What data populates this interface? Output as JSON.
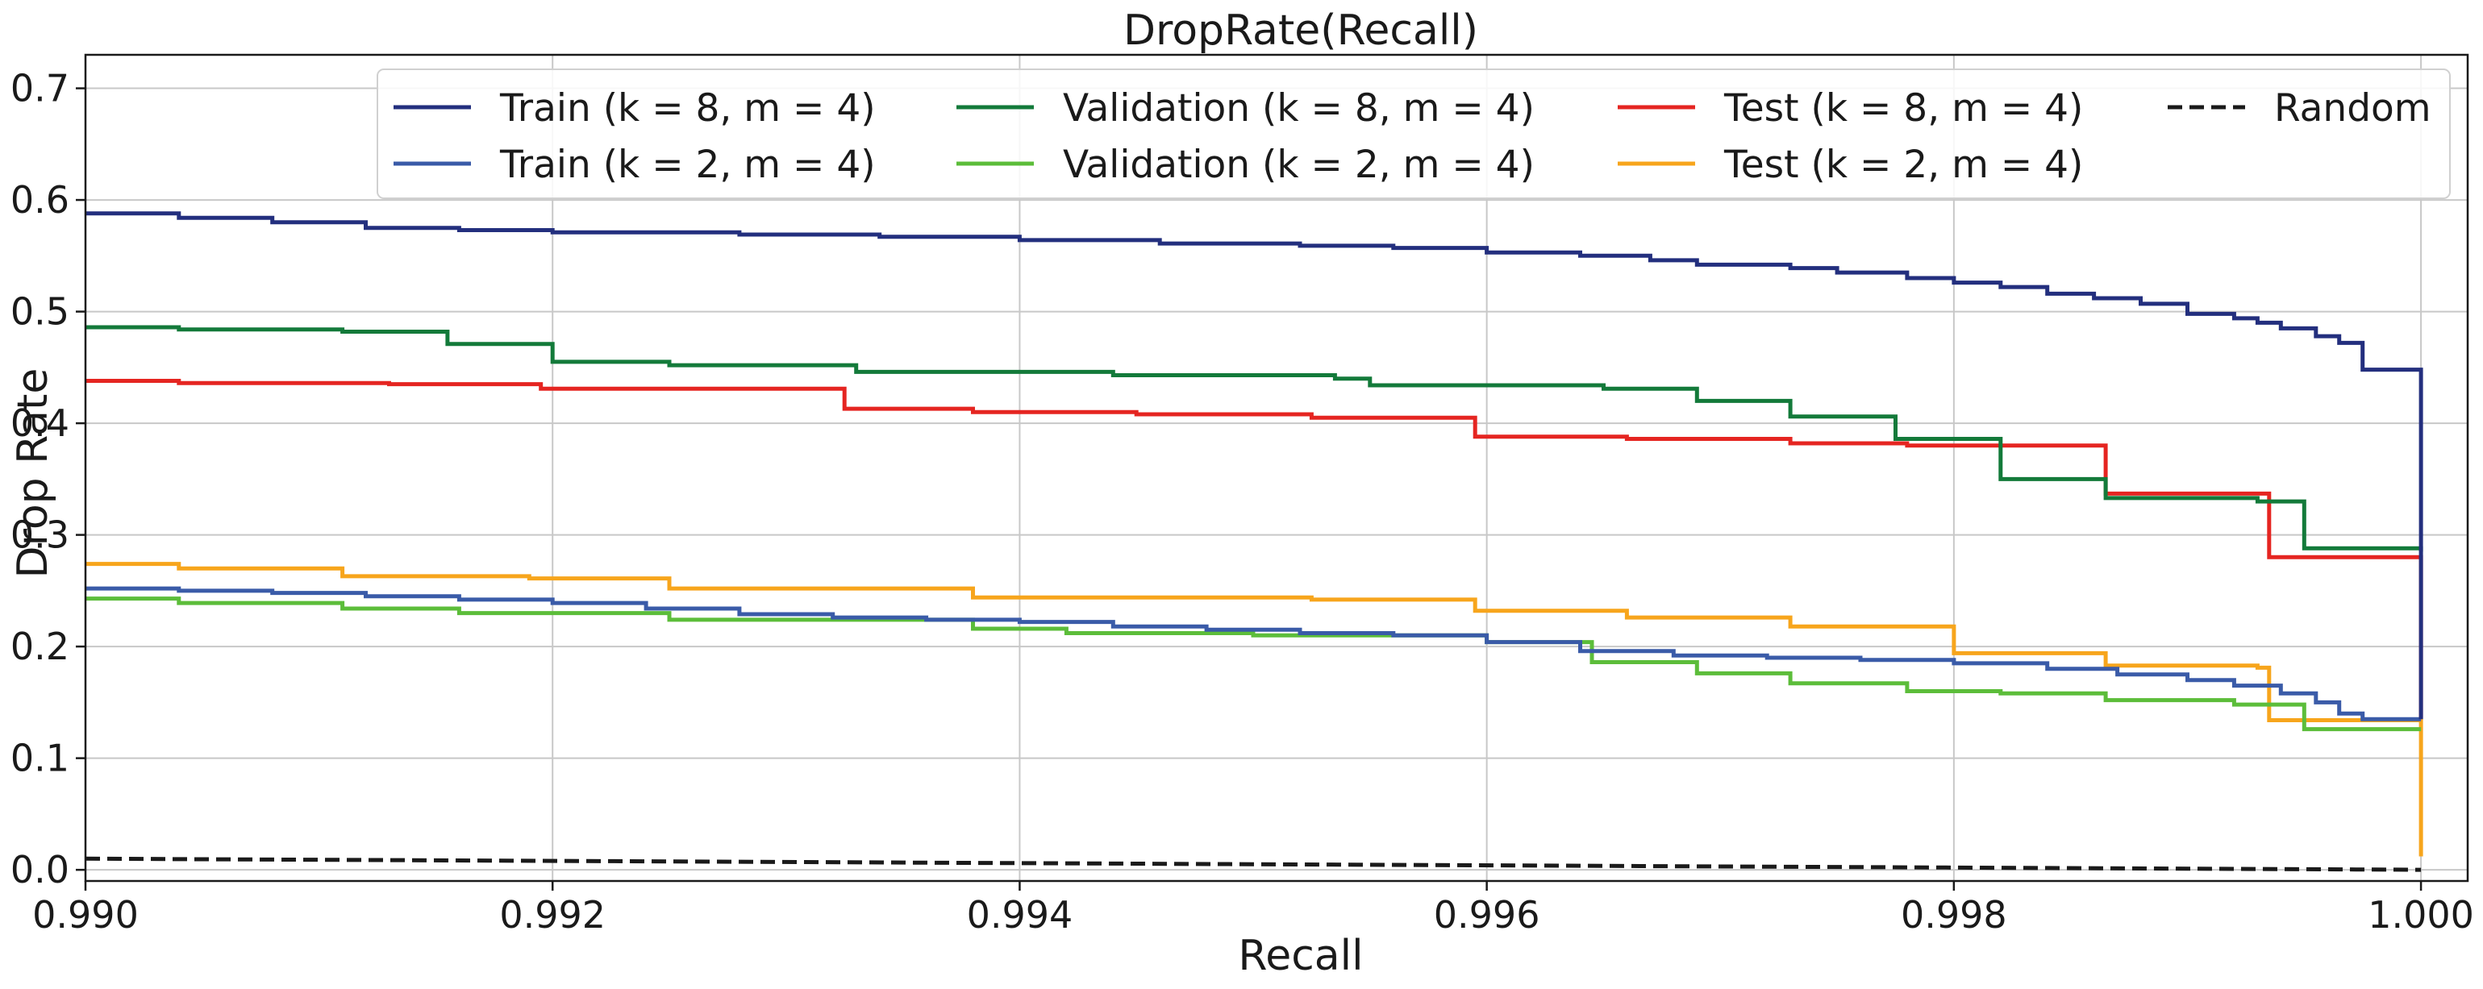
{
  "chart_data": {
    "type": "line",
    "step": true,
    "title": "DropRate(Recall)",
    "xlabel": "Recall",
    "ylabel": "Drop Rate",
    "xlim": [
      0.99,
      1.0002
    ],
    "ylim": [
      -0.01,
      0.73
    ],
    "xticks": [
      0.99,
      0.992,
      0.994,
      0.996,
      0.998,
      1.0
    ],
    "xtick_labels": [
      "0.990",
      "0.992",
      "0.994",
      "0.996",
      "0.998",
      "1.000"
    ],
    "yticks": [
      0.0,
      0.1,
      0.2,
      0.3,
      0.4,
      0.5,
      0.6,
      0.7
    ],
    "ytick_labels": [
      "0.0",
      "0.1",
      "0.2",
      "0.3",
      "0.4",
      "0.5",
      "0.6",
      "0.7"
    ],
    "grid": true,
    "legend_position": "top-right",
    "series": [
      {
        "name": "Train (k = 8, m = 4)",
        "color": "#232f7e",
        "dash": "solid",
        "points": [
          [
            0.99,
            0.588
          ],
          [
            0.9904,
            0.584
          ],
          [
            0.9908,
            0.58
          ],
          [
            0.9912,
            0.575
          ],
          [
            0.9916,
            0.573
          ],
          [
            0.992,
            0.571
          ],
          [
            0.9928,
            0.569
          ],
          [
            0.9934,
            0.567
          ],
          [
            0.994,
            0.564
          ],
          [
            0.9946,
            0.561
          ],
          [
            0.9952,
            0.559
          ],
          [
            0.9956,
            0.557
          ],
          [
            0.996,
            0.553
          ],
          [
            0.9964,
            0.55
          ],
          [
            0.9967,
            0.546
          ],
          [
            0.9969,
            0.542
          ],
          [
            0.9973,
            0.539
          ],
          [
            0.9975,
            0.535
          ],
          [
            0.9978,
            0.53
          ],
          [
            0.998,
            0.526
          ],
          [
            0.9982,
            0.522
          ],
          [
            0.9984,
            0.516
          ],
          [
            0.9986,
            0.512
          ],
          [
            0.9988,
            0.507
          ],
          [
            0.999,
            0.498
          ],
          [
            0.9992,
            0.494
          ],
          [
            0.9993,
            0.49
          ],
          [
            0.9994,
            0.485
          ],
          [
            0.99955,
            0.478
          ],
          [
            0.99965,
            0.472
          ],
          [
            0.99975,
            0.448
          ],
          [
            1.0,
            0.448
          ],
          [
            1.0,
            0.135
          ]
        ]
      },
      {
        "name": "Train (k = 2, m = 4)",
        "color": "#3a5ba8",
        "dash": "solid",
        "points": [
          [
            0.99,
            0.252
          ],
          [
            0.9904,
            0.25
          ],
          [
            0.9908,
            0.248
          ],
          [
            0.9912,
            0.245
          ],
          [
            0.9916,
            0.242
          ],
          [
            0.992,
            0.239
          ],
          [
            0.9924,
            0.234
          ],
          [
            0.9928,
            0.229
          ],
          [
            0.9932,
            0.226
          ],
          [
            0.9936,
            0.224
          ],
          [
            0.994,
            0.222
          ],
          [
            0.9944,
            0.218
          ],
          [
            0.9948,
            0.215
          ],
          [
            0.9952,
            0.212
          ],
          [
            0.9956,
            0.21
          ],
          [
            0.996,
            0.204
          ],
          [
            0.9964,
            0.196
          ],
          [
            0.9968,
            0.192
          ],
          [
            0.9972,
            0.19
          ],
          [
            0.9976,
            0.188
          ],
          [
            0.998,
            0.185
          ],
          [
            0.9984,
            0.18
          ],
          [
            0.9987,
            0.175
          ],
          [
            0.999,
            0.17
          ],
          [
            0.9992,
            0.165
          ],
          [
            0.9994,
            0.158
          ],
          [
            0.99955,
            0.15
          ],
          [
            0.99965,
            0.14
          ],
          [
            0.99975,
            0.135
          ],
          [
            1.0,
            0.135
          ]
        ]
      },
      {
        "name": "Validation (k = 8, m = 4)",
        "color": "#137a3a",
        "dash": "solid",
        "points": [
          [
            0.99,
            0.486
          ],
          [
            0.9904,
            0.484
          ],
          [
            0.9911,
            0.482
          ],
          [
            0.99155,
            0.471
          ],
          [
            0.992,
            0.455
          ],
          [
            0.9925,
            0.452
          ],
          [
            0.9933,
            0.446
          ],
          [
            0.9944,
            0.443
          ],
          [
            0.99535,
            0.44
          ],
          [
            0.9955,
            0.434
          ],
          [
            0.9965,
            0.431
          ],
          [
            0.9969,
            0.42
          ],
          [
            0.9973,
            0.406
          ],
          [
            0.99775,
            0.386
          ],
          [
            0.9982,
            0.35
          ],
          [
            0.99865,
            0.333
          ],
          [
            0.9993,
            0.33
          ],
          [
            0.9995,
            0.288
          ],
          [
            1.0,
            0.288
          ],
          [
            1.0,
            0.285
          ]
        ]
      },
      {
        "name": "Validation (k = 2, m = 4)",
        "color": "#5cbd3a",
        "dash": "solid",
        "points": [
          [
            0.99,
            0.243
          ],
          [
            0.9904,
            0.239
          ],
          [
            0.9911,
            0.234
          ],
          [
            0.9916,
            0.23
          ],
          [
            0.9925,
            0.224
          ],
          [
            0.9938,
            0.216
          ],
          [
            0.9942,
            0.212
          ],
          [
            0.995,
            0.21
          ],
          [
            0.996,
            0.204
          ],
          [
            0.99645,
            0.186
          ],
          [
            0.9969,
            0.176
          ],
          [
            0.9973,
            0.167
          ],
          [
            0.9978,
            0.16
          ],
          [
            0.9982,
            0.158
          ],
          [
            0.99865,
            0.152
          ],
          [
            0.9992,
            0.148
          ],
          [
            0.9995,
            0.126
          ],
          [
            1.0,
            0.126
          ]
        ]
      },
      {
        "name": "Test (k = 8, m = 4)",
        "color": "#e52521",
        "dash": "solid",
        "points": [
          [
            0.99,
            0.438
          ],
          [
            0.9904,
            0.436
          ],
          [
            0.9913,
            0.435
          ],
          [
            0.99195,
            0.431
          ],
          [
            0.99325,
            0.413
          ],
          [
            0.9938,
            0.41
          ],
          [
            0.9945,
            0.408
          ],
          [
            0.99525,
            0.405
          ],
          [
            0.99595,
            0.388
          ],
          [
            0.9966,
            0.386
          ],
          [
            0.9973,
            0.382
          ],
          [
            0.9978,
            0.38
          ],
          [
            0.99865,
            0.337
          ],
          [
            0.99935,
            0.28
          ],
          [
            1.0,
            0.28
          ],
          [
            1.0,
            0.136
          ]
        ]
      },
      {
        "name": "Test (k = 2, m = 4)",
        "color": "#f7a51c",
        "dash": "solid",
        "points": [
          [
            0.99,
            0.274
          ],
          [
            0.9904,
            0.27
          ],
          [
            0.9911,
            0.263
          ],
          [
            0.9919,
            0.261
          ],
          [
            0.9925,
            0.252
          ],
          [
            0.9938,
            0.244
          ],
          [
            0.99525,
            0.242
          ],
          [
            0.99595,
            0.232
          ],
          [
            0.9966,
            0.226
          ],
          [
            0.9973,
            0.218
          ],
          [
            0.998,
            0.194
          ],
          [
            0.99865,
            0.183
          ],
          [
            0.9993,
            0.181
          ],
          [
            0.99935,
            0.134
          ],
          [
            1.0,
            0.132
          ],
          [
            1.0,
            0.012
          ]
        ]
      },
      {
        "name": "Random",
        "color": "#1a1a1a",
        "dash": "dashed",
        "points": [
          [
            0.99,
            0.01
          ],
          [
            1.0,
            0.0
          ]
        ]
      }
    ]
  }
}
